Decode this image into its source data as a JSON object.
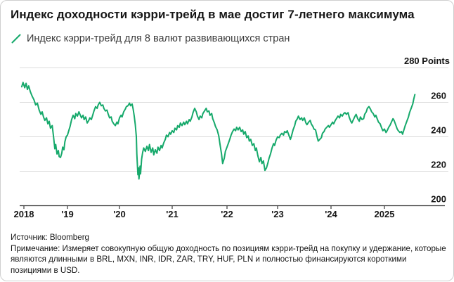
{
  "header": {
    "title": "Индекс доходности кэрри-трейд в мае достиг 7-летнего максимума"
  },
  "legend": {
    "label": "Индекс кэрри-трейд для 8 валют развивающихся стран",
    "marker": "diagonal-line",
    "marker_color": "#16A96B"
  },
  "axis": {
    "top_label": "280 Points",
    "y_tick_labels": [
      "200",
      "220",
      "240",
      "260"
    ],
    "x_tick_labels": [
      "2018",
      "'19",
      "'20",
      "'21",
      "'22",
      "'23",
      "'24",
      "2025"
    ]
  },
  "footer": {
    "source": "Источник: Bloomberg",
    "note": "Примечание: Измеряет совокупную общую доходность по позициям кэрри-трейд на покупку и удержание, которые являются длинными в BRL, MXN, INR, IDR, ZAR, TRY, HUF, PLN и полностью финансируются короткими позициями в USD."
  },
  "colors": {
    "line": "#16A96B",
    "grid": "#DBDBDB",
    "axis_line": "#3A3A3A",
    "label_text": "#161616"
  },
  "chart_data": {
    "type": "line",
    "title": "Индекс доходности кэрри-трейд в мае достиг 7-летнего максимума",
    "xlabel": "",
    "ylabel": "Points",
    "unit": "Points",
    "ylim": [
      200,
      280
    ],
    "y_ticks": [
      200,
      220,
      240,
      260,
      280
    ],
    "x_ticks": [
      2018,
      2019,
      2020,
      2021,
      2022,
      2023,
      2024,
      2025
    ],
    "x_range": [
      2017.95,
      2025.57
    ],
    "grid": "horizontal",
    "legend_position": "top-left",
    "series": [
      {
        "name": "Индекс кэрри-трейд для 8 валют развивающихся стран",
        "points": [
          [
            2017.95,
            269
          ],
          [
            2017.98,
            271.5
          ],
          [
            2018.02,
            268.5
          ],
          [
            2018.05,
            271
          ],
          [
            2018.08,
            267.5
          ],
          [
            2018.11,
            269.5
          ],
          [
            2018.15,
            266
          ],
          [
            2018.19,
            263.5
          ],
          [
            2018.23,
            261.5
          ],
          [
            2018.27,
            258.5
          ],
          [
            2018.31,
            259.5
          ],
          [
            2018.35,
            255.5
          ],
          [
            2018.39,
            253
          ],
          [
            2018.42,
            254.5
          ],
          [
            2018.45,
            251.5
          ],
          [
            2018.48,
            249.5
          ],
          [
            2018.52,
            251
          ],
          [
            2018.55,
            247.5
          ],
          [
            2018.58,
            249
          ],
          [
            2018.61,
            245
          ],
          [
            2018.65,
            246.5
          ],
          [
            2018.68,
            240
          ],
          [
            2018.71,
            233
          ],
          [
            2018.73,
            235.5
          ],
          [
            2018.76,
            230
          ],
          [
            2018.79,
            232
          ],
          [
            2018.81,
            228.5
          ],
          [
            2018.84,
            228
          ],
          [
            2018.87,
            230.5
          ],
          [
            2018.89,
            234
          ],
          [
            2018.92,
            232.5
          ],
          [
            2018.94,
            237
          ],
          [
            2018.97,
            240
          ],
          [
            2019.0,
            241
          ],
          [
            2019.03,
            244
          ],
          [
            2019.05,
            246
          ],
          [
            2019.08,
            250
          ],
          [
            2019.11,
            252.5
          ],
          [
            2019.14,
            250.5
          ],
          [
            2019.16,
            253.5
          ],
          [
            2019.19,
            252
          ],
          [
            2019.22,
            254.5
          ],
          [
            2019.24,
            253
          ],
          [
            2019.27,
            251
          ],
          [
            2019.3,
            252.5
          ],
          [
            2019.32,
            250
          ],
          [
            2019.35,
            251.5
          ],
          [
            2019.38,
            248
          ],
          [
            2019.41,
            249.5
          ],
          [
            2019.43,
            251
          ],
          [
            2019.46,
            250
          ],
          [
            2019.49,
            253
          ],
          [
            2019.51,
            255
          ],
          [
            2019.54,
            257.5
          ],
          [
            2019.57,
            256.5
          ],
          [
            2019.59,
            258.5
          ],
          [
            2019.62,
            260
          ],
          [
            2019.65,
            258
          ],
          [
            2019.68,
            258.5
          ],
          [
            2019.7,
            256.5
          ],
          [
            2019.73,
            255
          ],
          [
            2019.76,
            255.5
          ],
          [
            2019.78,
            253.5
          ],
          [
            2019.81,
            251
          ],
          [
            2019.84,
            251.5
          ],
          [
            2019.86,
            249
          ],
          [
            2019.89,
            247.5
          ],
          [
            2019.92,
            246.5
          ],
          [
            2019.95,
            248.5
          ],
          [
            2019.97,
            247.5
          ],
          [
            2020.0,
            251
          ],
          [
            2020.03,
            252.5
          ],
          [
            2020.05,
            251.5
          ],
          [
            2020.08,
            254.5
          ],
          [
            2020.11,
            256
          ],
          [
            2020.13,
            257.5
          ],
          [
            2020.16,
            258
          ],
          [
            2020.19,
            259.5
          ],
          [
            2020.21,
            258
          ],
          [
            2020.24,
            259
          ],
          [
            2020.26,
            256
          ],
          [
            2020.28,
            252
          ],
          [
            2020.3,
            247
          ],
          [
            2020.32,
            240
          ],
          [
            2020.33,
            230
          ],
          [
            2020.35,
            218
          ],
          [
            2020.36,
            222
          ],
          [
            2020.37,
            215.5
          ],
          [
            2020.39,
            223
          ],
          [
            2020.4,
            218.5
          ],
          [
            2020.42,
            227
          ],
          [
            2020.44,
            231
          ],
          [
            2020.46,
            233.5
          ],
          [
            2020.49,
            231.5
          ],
          [
            2020.52,
            234.5
          ],
          [
            2020.55,
            232
          ],
          [
            2020.57,
            235.5
          ],
          [
            2020.6,
            231
          ],
          [
            2020.63,
            233.5
          ],
          [
            2020.65,
            229.5
          ],
          [
            2020.68,
            232.5
          ],
          [
            2020.71,
            230.5
          ],
          [
            2020.73,
            234
          ],
          [
            2020.76,
            232
          ],
          [
            2020.79,
            235
          ],
          [
            2020.81,
            233.5
          ],
          [
            2020.84,
            236.5
          ],
          [
            2020.87,
            238.5
          ],
          [
            2020.89,
            241
          ],
          [
            2020.92,
            240
          ],
          [
            2020.95,
            242.5
          ],
          [
            2020.97,
            241.5
          ],
          [
            2021.0,
            243.5
          ],
          [
            2021.03,
            242.5
          ],
          [
            2021.05,
            245
          ],
          [
            2021.08,
            244
          ],
          [
            2021.1,
            246.5
          ],
          [
            2021.13,
            245.5
          ],
          [
            2021.15,
            248
          ],
          [
            2021.18,
            246.5
          ],
          [
            2021.21,
            248.5
          ],
          [
            2021.23,
            247
          ],
          [
            2021.26,
            249
          ],
          [
            2021.28,
            247.5
          ],
          [
            2021.31,
            250
          ],
          [
            2021.33,
            249
          ],
          [
            2021.36,
            251.5
          ],
          [
            2021.38,
            254
          ],
          [
            2021.41,
            256.5
          ],
          [
            2021.44,
            254.5
          ],
          [
            2021.46,
            252
          ],
          [
            2021.49,
            250
          ],
          [
            2021.51,
            252
          ],
          [
            2021.54,
            251
          ],
          [
            2021.56,
            253.5
          ],
          [
            2021.59,
            255
          ],
          [
            2021.62,
            256.5
          ],
          [
            2021.64,
            254.5
          ],
          [
            2021.67,
            255
          ],
          [
            2021.69,
            252.5
          ],
          [
            2021.72,
            253.5
          ],
          [
            2021.74,
            250.5
          ],
          [
            2021.77,
            248
          ],
          [
            2021.79,
            246
          ],
          [
            2021.82,
            244
          ],
          [
            2021.85,
            240.5
          ],
          [
            2021.87,
            236
          ],
          [
            2021.9,
            230
          ],
          [
            2021.92,
            224.5
          ],
          [
            2021.95,
            227.5
          ],
          [
            2021.97,
            231.5
          ],
          [
            2022.0,
            234
          ],
          [
            2022.03,
            236.5
          ],
          [
            2022.06,
            239
          ],
          [
            2022.08,
            241
          ],
          [
            2022.11,
            243
          ],
          [
            2022.14,
            244.5
          ],
          [
            2022.17,
            243.5
          ],
          [
            2022.19,
            245.5
          ],
          [
            2022.22,
            244
          ],
          [
            2022.25,
            245.5
          ],
          [
            2022.28,
            243
          ],
          [
            2022.31,
            244
          ],
          [
            2022.33,
            241.5
          ],
          [
            2022.36,
            243
          ],
          [
            2022.39,
            239.5
          ],
          [
            2022.42,
            240.5
          ],
          [
            2022.44,
            237.5
          ],
          [
            2022.47,
            238.5
          ],
          [
            2022.5,
            235
          ],
          [
            2022.53,
            236
          ],
          [
            2022.56,
            232
          ],
          [
            2022.58,
            233.5
          ],
          [
            2022.61,
            229
          ],
          [
            2022.64,
            225.5
          ],
          [
            2022.67,
            228
          ],
          [
            2022.69,
            224.5
          ],
          [
            2022.72,
            226
          ],
          [
            2022.75,
            220.5
          ],
          [
            2022.78,
            222
          ],
          [
            2022.81,
            225
          ],
          [
            2022.83,
            227.5
          ],
          [
            2022.86,
            230
          ],
          [
            2022.89,
            233.5
          ],
          [
            2022.92,
            236
          ],
          [
            2022.94,
            235
          ],
          [
            2022.97,
            238
          ],
          [
            2023.0,
            240
          ],
          [
            2023.03,
            239.5
          ],
          [
            2023.05,
            241
          ],
          [
            2023.08,
            242
          ],
          [
            2023.11,
            241
          ],
          [
            2023.13,
            243
          ],
          [
            2023.16,
            242.5
          ],
          [
            2023.18,
            243.5
          ],
          [
            2023.21,
            241
          ],
          [
            2023.24,
            238.5
          ],
          [
            2023.26,
            240.5
          ],
          [
            2023.29,
            244
          ],
          [
            2023.32,
            246.5
          ],
          [
            2023.34,
            249
          ],
          [
            2023.37,
            250.5
          ],
          [
            2023.39,
            252
          ],
          [
            2023.42,
            250
          ],
          [
            2023.45,
            251
          ],
          [
            2023.47,
            249.5
          ],
          [
            2023.5,
            251
          ],
          [
            2023.53,
            248
          ],
          [
            2023.55,
            247
          ],
          [
            2023.58,
            248.5
          ],
          [
            2023.61,
            249.5
          ],
          [
            2023.63,
            247.5
          ],
          [
            2023.66,
            246
          ],
          [
            2023.68,
            244.5
          ],
          [
            2023.71,
            244
          ],
          [
            2023.74,
            240
          ],
          [
            2023.76,
            237.5
          ],
          [
            2023.79,
            238.5
          ],
          [
            2023.82,
            239.5
          ],
          [
            2023.84,
            242
          ],
          [
            2023.87,
            243
          ],
          [
            2023.89,
            244.5
          ],
          [
            2023.92,
            245.5
          ],
          [
            2023.95,
            246.5
          ],
          [
            2023.97,
            245.5
          ],
          [
            2024.0,
            247
          ],
          [
            2024.03,
            248.5
          ],
          [
            2024.05,
            247.5
          ],
          [
            2024.08,
            249.5
          ],
          [
            2024.11,
            251
          ],
          [
            2024.13,
            252
          ],
          [
            2024.16,
            251
          ],
          [
            2024.18,
            253
          ],
          [
            2024.21,
            252
          ],
          [
            2024.24,
            253.5
          ],
          [
            2024.26,
            254
          ],
          [
            2024.29,
            253
          ],
          [
            2024.32,
            254
          ],
          [
            2024.34,
            251.5
          ],
          [
            2024.37,
            249
          ],
          [
            2024.39,
            248
          ],
          [
            2024.42,
            250
          ],
          [
            2024.45,
            252
          ],
          [
            2024.47,
            253
          ],
          [
            2024.5,
            250.5
          ],
          [
            2024.53,
            249
          ],
          [
            2024.55,
            251.5
          ],
          [
            2024.58,
            250
          ],
          [
            2024.61,
            250.5
          ],
          [
            2024.63,
            253
          ],
          [
            2024.66,
            254.5
          ],
          [
            2024.68,
            256.5
          ],
          [
            2024.71,
            257.5
          ],
          [
            2024.74,
            256
          ],
          [
            2024.76,
            254.5
          ],
          [
            2024.79,
            253.5
          ],
          [
            2024.82,
            251.5
          ],
          [
            2024.84,
            252.5
          ],
          [
            2024.87,
            250
          ],
          [
            2024.89,
            248.5
          ],
          [
            2024.92,
            247.5
          ],
          [
            2024.95,
            245
          ],
          [
            2024.97,
            243.5
          ],
          [
            2025.0,
            244.5
          ],
          [
            2025.03,
            242.5
          ],
          [
            2025.05,
            243.5
          ],
          [
            2025.08,
            245.5
          ],
          [
            2025.11,
            247
          ],
          [
            2025.13,
            248.5
          ],
          [
            2025.16,
            250.5
          ],
          [
            2025.18,
            249.5
          ],
          [
            2025.21,
            247
          ],
          [
            2025.24,
            244.5
          ],
          [
            2025.26,
            243.5
          ],
          [
            2025.29,
            242.5
          ],
          [
            2025.32,
            243
          ],
          [
            2025.34,
            241.5
          ],
          [
            2025.37,
            244.5
          ],
          [
            2025.39,
            246.5
          ],
          [
            2025.42,
            249
          ],
          [
            2025.45,
            251.5
          ],
          [
            2025.47,
            254
          ],
          [
            2025.5,
            256.5
          ],
          [
            2025.53,
            259
          ],
          [
            2025.55,
            262
          ],
          [
            2025.57,
            264.5
          ]
        ]
      }
    ]
  }
}
